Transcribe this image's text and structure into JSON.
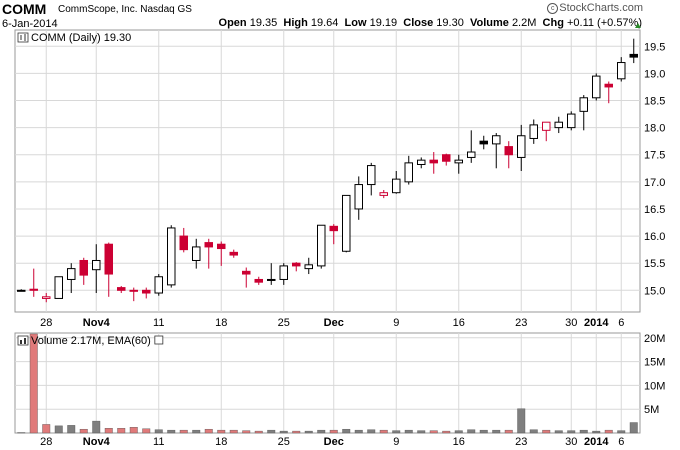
{
  "header": {
    "symbol": "COMM",
    "company": "CommScope, Inc. Nasdaq GS",
    "date": "6-Jan-2014",
    "brand": "StockCharts.com",
    "open_label": "Open",
    "open": "19.35",
    "high_label": "High",
    "high": "19.64",
    "low_label": "Low",
    "low": "19.19",
    "close_label": "Close",
    "close": "19.30",
    "volume_label": "Volume",
    "volume": "2.2M",
    "chg_label": "Chg",
    "chg": "+0.11 (+0.57%)"
  },
  "colors": {
    "up": "#000000",
    "down": "#cc0033",
    "grid": "#d8d8d8",
    "vol_up": "#7f7f7f",
    "vol_down": "#e07a7a"
  },
  "chart_data": [
    {
      "type": "candlestick",
      "legend": "COMM (Daily) 19.30",
      "ylim": [
        14.6,
        19.8
      ],
      "yticks": [
        15.0,
        15.5,
        16.0,
        16.5,
        17.0,
        17.5,
        18.0,
        18.5,
        19.0,
        19.5
      ],
      "ytick_labels": [
        "15.0",
        "15.5",
        "16.0",
        "16.5",
        "17.0",
        "17.5",
        "18.0",
        "18.5",
        "19.0",
        "19.5"
      ],
      "xtick_labels": [
        {
          "i": 2,
          "t": "28"
        },
        {
          "i": 6,
          "t": "Nov4",
          "b": true
        },
        {
          "i": 11,
          "t": "11"
        },
        {
          "i": 16,
          "t": "18"
        },
        {
          "i": 21,
          "t": "25"
        },
        {
          "i": 25,
          "t": "Dec",
          "b": true
        },
        {
          "i": 30,
          "t": "9"
        },
        {
          "i": 35,
          "t": "16"
        },
        {
          "i": 40,
          "t": "23"
        },
        {
          "i": 44,
          "t": "30"
        },
        {
          "i": 46,
          "t": "2014",
          "b": true
        },
        {
          "i": 48,
          "t": "6"
        }
      ],
      "candles": [
        {
          "o": 15.0,
          "h": 15.02,
          "l": 14.98,
          "c": 15.0,
          "col": "up"
        },
        {
          "o": 15.02,
          "h": 15.4,
          "l": 14.88,
          "c": 15.0,
          "col": "down"
        },
        {
          "o": 14.85,
          "h": 14.95,
          "l": 14.78,
          "c": 14.88,
          "col": "down"
        },
        {
          "o": 14.85,
          "h": 15.25,
          "l": 14.85,
          "c": 15.25,
          "col": "up"
        },
        {
          "o": 15.2,
          "h": 15.5,
          "l": 14.95,
          "c": 15.4,
          "col": "up"
        },
        {
          "o": 15.55,
          "h": 15.6,
          "l": 15.1,
          "c": 15.28,
          "col": "down"
        },
        {
          "o": 15.38,
          "h": 15.85,
          "l": 14.95,
          "c": 15.55,
          "col": "up"
        },
        {
          "o": 15.85,
          "h": 15.88,
          "l": 14.88,
          "c": 15.3,
          "col": "down"
        },
        {
          "o": 15.05,
          "h": 15.08,
          "l": 14.95,
          "c": 15.0,
          "col": "down"
        },
        {
          "o": 15.0,
          "h": 15.05,
          "l": 14.8,
          "c": 15.0,
          "col": "down"
        },
        {
          "o": 15.0,
          "h": 15.05,
          "l": 14.85,
          "c": 14.95,
          "col": "down"
        },
        {
          "o": 14.95,
          "h": 15.3,
          "l": 14.9,
          "c": 15.25,
          "col": "up"
        },
        {
          "o": 15.1,
          "h": 16.2,
          "l": 15.05,
          "c": 16.15,
          "col": "up"
        },
        {
          "o": 16.0,
          "h": 16.15,
          "l": 15.7,
          "c": 15.75,
          "col": "down"
        },
        {
          "o": 15.55,
          "h": 15.95,
          "l": 15.4,
          "c": 15.8,
          "col": "up"
        },
        {
          "o": 15.88,
          "h": 15.95,
          "l": 15.4,
          "c": 15.8,
          "col": "down"
        },
        {
          "o": 15.85,
          "h": 15.9,
          "l": 15.45,
          "c": 15.77,
          "col": "down"
        },
        {
          "o": 15.7,
          "h": 15.75,
          "l": 15.6,
          "c": 15.65,
          "col": "down"
        },
        {
          "o": 15.35,
          "h": 15.42,
          "l": 15.05,
          "c": 15.3,
          "col": "down"
        },
        {
          "o": 15.2,
          "h": 15.25,
          "l": 15.1,
          "c": 15.15,
          "col": "down"
        },
        {
          "o": 15.2,
          "h": 15.5,
          "l": 15.1,
          "c": 15.2,
          "col": "up"
        },
        {
          "o": 15.2,
          "h": 15.5,
          "l": 15.1,
          "c": 15.45,
          "col": "up"
        },
        {
          "o": 15.5,
          "h": 15.52,
          "l": 15.35,
          "c": 15.45,
          "col": "down"
        },
        {
          "o": 15.4,
          "h": 15.6,
          "l": 15.3,
          "c": 15.47,
          "col": "up"
        },
        {
          "o": 15.45,
          "h": 16.2,
          "l": 15.4,
          "c": 16.2,
          "col": "up"
        },
        {
          "o": 16.18,
          "h": 16.22,
          "l": 15.85,
          "c": 16.1,
          "col": "down"
        },
        {
          "o": 15.72,
          "h": 16.75,
          "l": 15.7,
          "c": 16.75,
          "col": "up"
        },
        {
          "o": 16.5,
          "h": 17.1,
          "l": 16.3,
          "c": 16.95,
          "col": "up"
        },
        {
          "o": 16.95,
          "h": 17.35,
          "l": 16.75,
          "c": 17.3,
          "col": "up"
        },
        {
          "o": 16.75,
          "h": 16.85,
          "l": 16.7,
          "c": 16.8,
          "col": "down"
        },
        {
          "o": 16.8,
          "h": 17.2,
          "l": 16.78,
          "c": 17.05,
          "col": "up"
        },
        {
          "o": 17.0,
          "h": 17.48,
          "l": 16.95,
          "c": 17.35,
          "col": "up"
        },
        {
          "o": 17.32,
          "h": 17.45,
          "l": 17.25,
          "c": 17.4,
          "col": "up"
        },
        {
          "o": 17.4,
          "h": 17.55,
          "l": 17.15,
          "c": 17.35,
          "col": "down"
        },
        {
          "o": 17.5,
          "h": 17.52,
          "l": 17.3,
          "c": 17.38,
          "col": "down"
        },
        {
          "o": 17.35,
          "h": 17.5,
          "l": 17.15,
          "c": 17.4,
          "col": "up"
        },
        {
          "o": 17.45,
          "h": 17.95,
          "l": 17.35,
          "c": 17.55,
          "col": "up"
        },
        {
          "o": 17.75,
          "h": 17.85,
          "l": 17.6,
          "c": 17.7,
          "col": "up"
        },
        {
          "o": 17.7,
          "h": 17.9,
          "l": 17.25,
          "c": 17.85,
          "col": "up"
        },
        {
          "o": 17.65,
          "h": 17.75,
          "l": 17.25,
          "c": 17.5,
          "col": "down"
        },
        {
          "o": 17.45,
          "h": 18.05,
          "l": 17.2,
          "c": 17.85,
          "col": "up"
        },
        {
          "o": 17.8,
          "h": 18.15,
          "l": 17.7,
          "c": 18.05,
          "col": "up"
        },
        {
          "o": 17.95,
          "h": 18.05,
          "l": 17.75,
          "c": 18.1,
          "col": "down"
        },
        {
          "o": 18.0,
          "h": 18.2,
          "l": 17.9,
          "c": 18.1,
          "col": "up"
        },
        {
          "o": 18.0,
          "h": 18.3,
          "l": 17.95,
          "c": 18.25,
          "col": "up"
        },
        {
          "o": 18.3,
          "h": 18.6,
          "l": 17.95,
          "c": 18.55,
          "col": "up"
        },
        {
          "o": 18.55,
          "h": 19.0,
          "l": 18.5,
          "c": 18.95,
          "col": "up"
        },
        {
          "o": 18.8,
          "h": 18.85,
          "l": 18.45,
          "c": 18.75,
          "col": "down"
        },
        {
          "o": 18.9,
          "h": 19.3,
          "l": 18.85,
          "c": 19.2,
          "col": "up"
        },
        {
          "o": 19.35,
          "h": 19.64,
          "l": 19.19,
          "c": 19.3,
          "col": "up"
        }
      ]
    },
    {
      "type": "bar",
      "legend": "Volume 2.17M, EMA(60)",
      "ylim": [
        0,
        21
      ],
      "yticks": [
        5,
        10,
        15,
        20
      ],
      "ytick_labels": [
        "5M",
        "10M",
        "15M",
        "20M"
      ],
      "values_millions": [
        0.1,
        20.8,
        1.8,
        1.5,
        1.6,
        0.8,
        2.5,
        1.0,
        1.0,
        1.2,
        0.9,
        0.7,
        0.6,
        0.6,
        0.6,
        0.8,
        0.6,
        0.6,
        0.5,
        0.4,
        0.6,
        0.4,
        0.4,
        0.4,
        0.6,
        0.6,
        0.8,
        0.6,
        0.7,
        0.6,
        0.5,
        0.6,
        0.5,
        0.5,
        0.4,
        0.5,
        0.7,
        0.6,
        0.6,
        0.6,
        5.1,
        0.7,
        0.6,
        0.5,
        0.5,
        0.6,
        0.4,
        0.6,
        0.5,
        2.2
      ],
      "colors": [
        "up",
        "down",
        "down",
        "up",
        "up",
        "down",
        "up",
        "down",
        "down",
        "down",
        "down",
        "up",
        "up",
        "down",
        "up",
        "down",
        "down",
        "down",
        "down",
        "down",
        "up",
        "up",
        "down",
        "up",
        "up",
        "down",
        "up",
        "up",
        "up",
        "down",
        "up",
        "up",
        "up",
        "down",
        "down",
        "up",
        "up",
        "up",
        "up",
        "down",
        "up",
        "up",
        "down",
        "up",
        "up",
        "up",
        "up",
        "down",
        "up",
        "up"
      ]
    }
  ]
}
